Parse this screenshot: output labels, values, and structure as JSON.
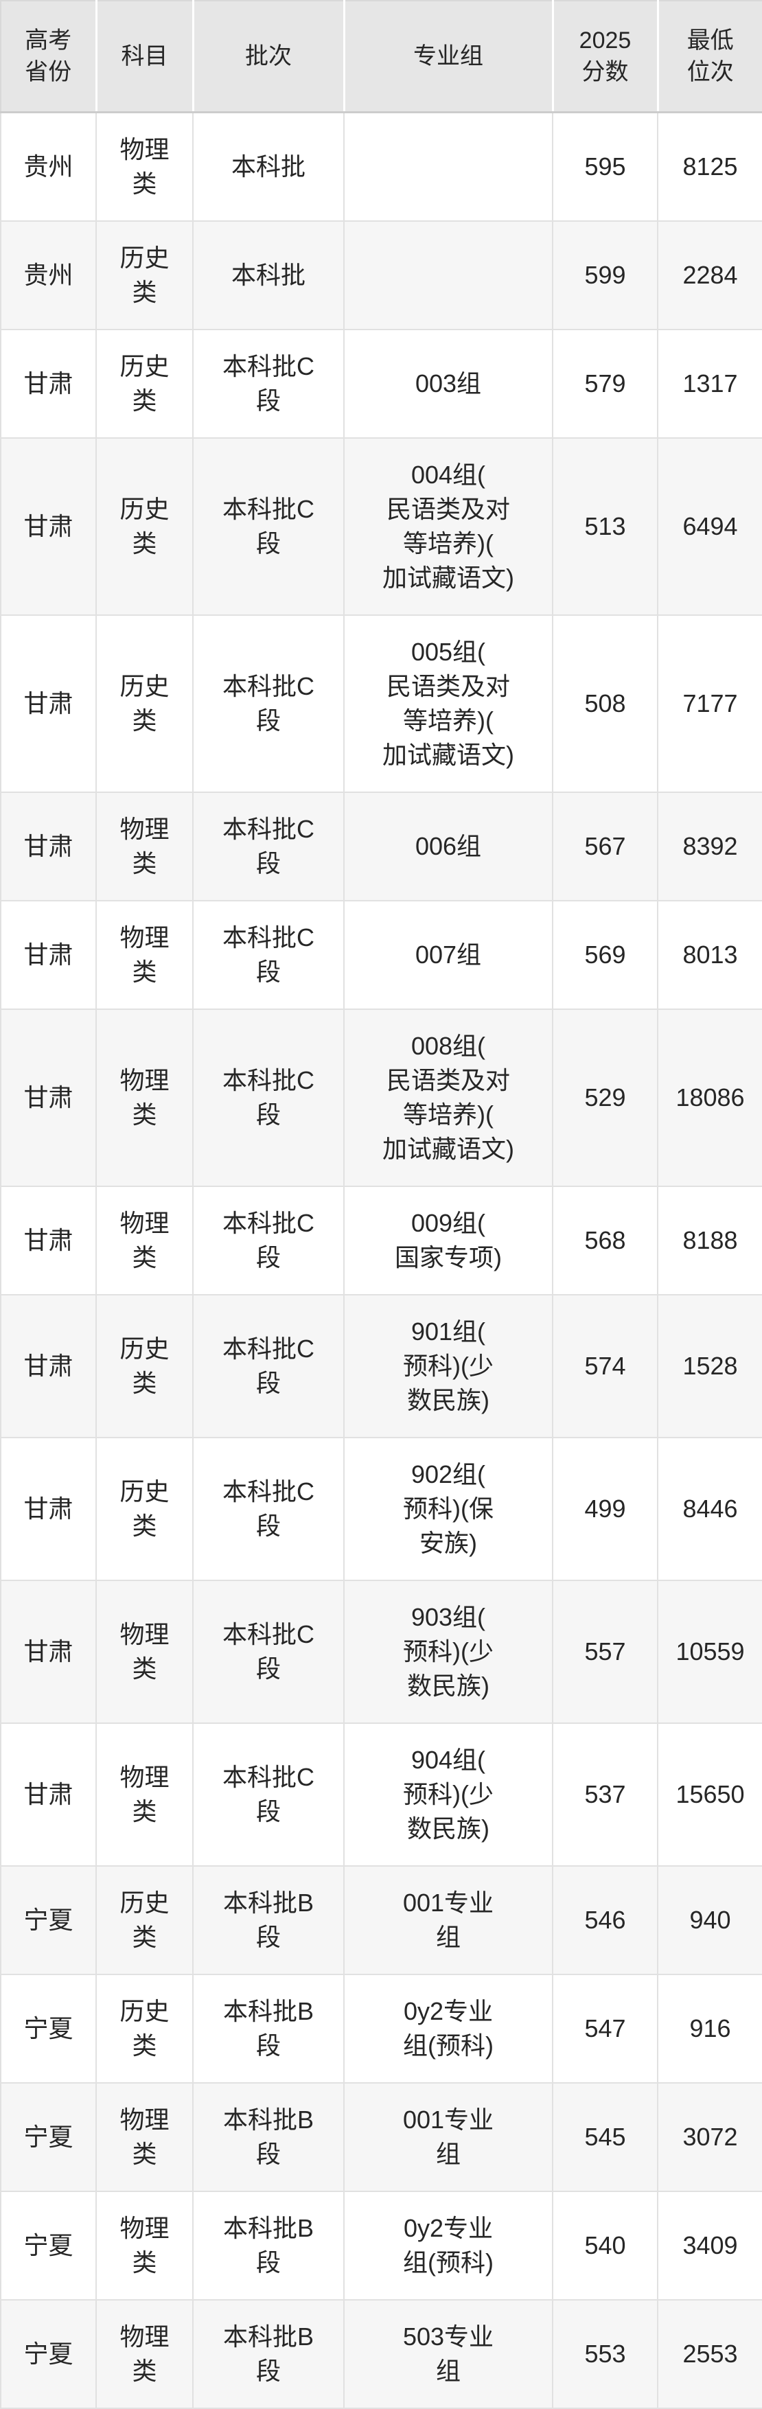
{
  "colors": {
    "header_bg": "#e6e6e6",
    "row_bg": "#ffffff",
    "row_alt_bg": "#f6f6f6",
    "border": "#e1e1e1",
    "header_cell_divider": "#ffffff",
    "text": "#262626"
  },
  "table": {
    "columns": [
      {
        "key": "province",
        "label": "高考\n省份"
      },
      {
        "key": "subject",
        "label": "科目"
      },
      {
        "key": "batch",
        "label": "批次"
      },
      {
        "key": "group",
        "label": "专业组"
      },
      {
        "key": "score",
        "label": "2025\n分数"
      },
      {
        "key": "rank",
        "label": "最低\n位次"
      }
    ],
    "rows": [
      {
        "province": "贵州",
        "subject": "物理\n类",
        "batch": "本科批",
        "group": "",
        "score": "595",
        "rank": "8125"
      },
      {
        "province": "贵州",
        "subject": "历史\n类",
        "batch": "本科批",
        "group": "",
        "score": "599",
        "rank": "2284"
      },
      {
        "province": "甘肃",
        "subject": "历史\n类",
        "batch": "本科批C\n段",
        "group": "003组",
        "score": "579",
        "rank": "1317"
      },
      {
        "province": "甘肃",
        "subject": "历史\n类",
        "batch": "本科批C\n段",
        "group": "004组(\n民语类及对\n等培养)(\n加试藏语文)",
        "score": "513",
        "rank": "6494"
      },
      {
        "province": "甘肃",
        "subject": "历史\n类",
        "batch": "本科批C\n段",
        "group": "005组(\n民语类及对\n等培养)(\n加试藏语文)",
        "score": "508",
        "rank": "7177"
      },
      {
        "province": "甘肃",
        "subject": "物理\n类",
        "batch": "本科批C\n段",
        "group": "006组",
        "score": "567",
        "rank": "8392"
      },
      {
        "province": "甘肃",
        "subject": "物理\n类",
        "batch": "本科批C\n段",
        "group": "007组",
        "score": "569",
        "rank": "8013"
      },
      {
        "province": "甘肃",
        "subject": "物理\n类",
        "batch": "本科批C\n段",
        "group": "008组(\n民语类及对\n等培养)(\n加试藏语文)",
        "score": "529",
        "rank": "18086"
      },
      {
        "province": "甘肃",
        "subject": "物理\n类",
        "batch": "本科批C\n段",
        "group": "009组(\n国家专项)",
        "score": "568",
        "rank": "8188"
      },
      {
        "province": "甘肃",
        "subject": "历史\n类",
        "batch": "本科批C\n段",
        "group": "901组(\n预科)(少\n数民族)",
        "score": "574",
        "rank": "1528"
      },
      {
        "province": "甘肃",
        "subject": "历史\n类",
        "batch": "本科批C\n段",
        "group": "902组(\n预科)(保\n安族)",
        "score": "499",
        "rank": "8446"
      },
      {
        "province": "甘肃",
        "subject": "物理\n类",
        "batch": "本科批C\n段",
        "group": "903组(\n预科)(少\n数民族)",
        "score": "557",
        "rank": "10559"
      },
      {
        "province": "甘肃",
        "subject": "物理\n类",
        "batch": "本科批C\n段",
        "group": "904组(\n预科)(少\n数民族)",
        "score": "537",
        "rank": "15650"
      },
      {
        "province": "宁夏",
        "subject": "历史\n类",
        "batch": "本科批B\n段",
        "group": "001专业\n组",
        "score": "546",
        "rank": "940"
      },
      {
        "province": "宁夏",
        "subject": "历史\n类",
        "batch": "本科批B\n段",
        "group": "0y2专业\n组(预科)",
        "score": "547",
        "rank": "916"
      },
      {
        "province": "宁夏",
        "subject": "物理\n类",
        "batch": "本科批B\n段",
        "group": "001专业\n组",
        "score": "545",
        "rank": "3072"
      },
      {
        "province": "宁夏",
        "subject": "物理\n类",
        "batch": "本科批B\n段",
        "group": "0y2专业\n组(预科)",
        "score": "540",
        "rank": "3409"
      },
      {
        "province": "宁夏",
        "subject": "物理\n类",
        "batch": "本科批B\n段",
        "group": "503专业\n组",
        "score": "553",
        "rank": "2553"
      }
    ]
  }
}
